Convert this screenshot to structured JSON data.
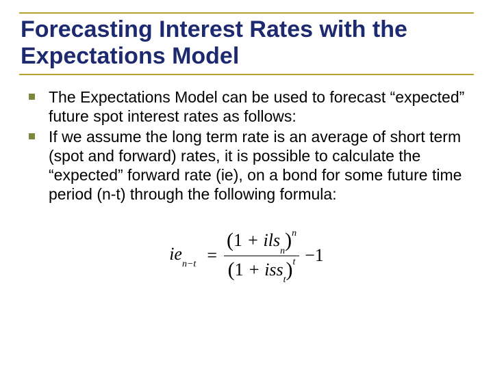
{
  "colors": {
    "rule": "#b8a22e",
    "title": "#1e2a6f",
    "bullet": "#7a8a3a"
  },
  "title": "Forecasting Interest Rates with the Expectations Model",
  "bullets": [
    "The Expectations Model can be used to forecast “expected” future spot interest rates as follows:",
    "If we assume the long term rate is an average of short term (spot and forward) rates, it is possible to calculate the “expected” forward rate (ie), on a bond for some future time period (n-t) through the following formula:"
  ],
  "formula": {
    "lhs_base": "ie",
    "lhs_sub": "n−t",
    "num_inner": "ils",
    "num_inner_sub": "n",
    "num_exp": "n",
    "den_inner": "iss",
    "den_inner_sub": "t",
    "den_exp": "t",
    "tail": "−1"
  }
}
